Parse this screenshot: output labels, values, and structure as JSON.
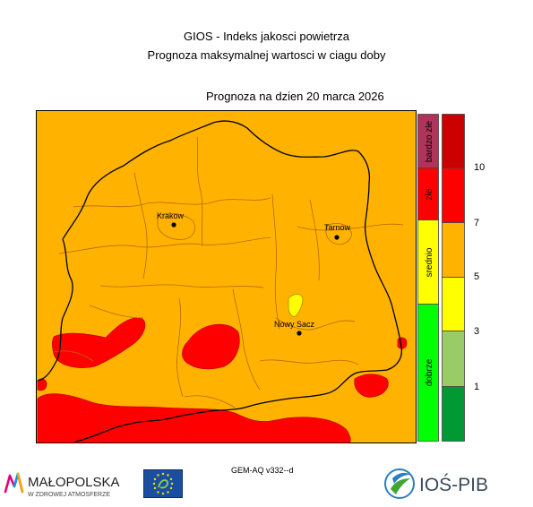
{
  "header": {
    "title_line1": "GIOS - Indeks jakosci powietrza",
    "title_line2": "Prognoza maksymalnej wartosci w ciagu doby",
    "forecast_date": "Prognoza na dzien  20 marca 2026"
  },
  "map": {
    "cities": [
      {
        "name": "Krakow"
      },
      {
        "name": "Tarnow"
      },
      {
        "name": "Nowy Sacz"
      }
    ]
  },
  "legend": {
    "categories": [
      {
        "label": "dobrze",
        "color": "#00ff00"
      },
      {
        "label": "srednio",
        "color": "#ffff00"
      },
      {
        "label": "zle",
        "color": "#ff0000"
      },
      {
        "label": "bardzo zle",
        "color": "#b2335a"
      }
    ],
    "scale_colors": [
      "#009933",
      "#99cc66",
      "#ffff00",
      "#ffb300",
      "#ff0000",
      "#cc0000"
    ],
    "ticks": [
      "1",
      "3",
      "5",
      "7",
      "10"
    ]
  },
  "footer": {
    "model": "GEM-AQ v332--d",
    "logo_malopolska": "MAŁOPOLSKA",
    "logo_malopolska_sub": "W ZDROWEJ ATMOSFERZE",
    "logo_ios": "IOŚ-PIB"
  }
}
